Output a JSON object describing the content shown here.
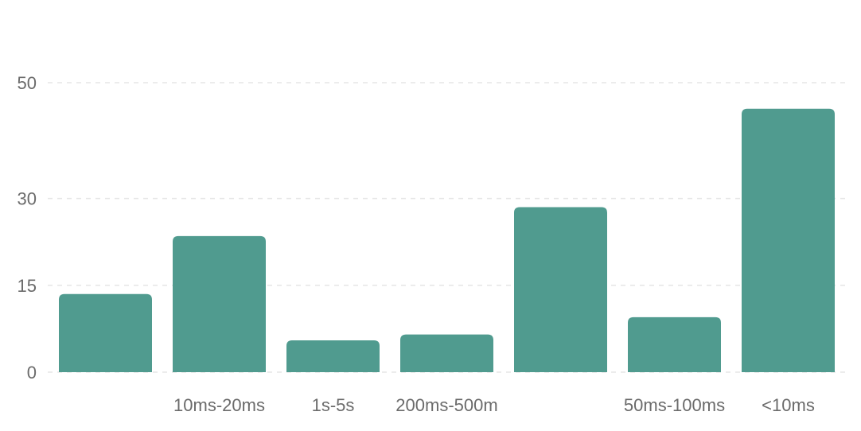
{
  "chart_data": {
    "type": "bar",
    "categories": [
      "",
      "10ms-20ms",
      "1s-5s",
      "200ms-500m",
      "",
      "50ms-100ms",
      "<10ms"
    ],
    "values": [
      13.5,
      23.5,
      5.5,
      6.5,
      28.5,
      9.5,
      45.5
    ],
    "title": "",
    "xlabel": "",
    "ylabel": "",
    "ylim": [
      0,
      50
    ],
    "yticks": [
      0,
      15,
      30,
      50
    ],
    "grid": true,
    "bar_color": "#509b8f"
  }
}
